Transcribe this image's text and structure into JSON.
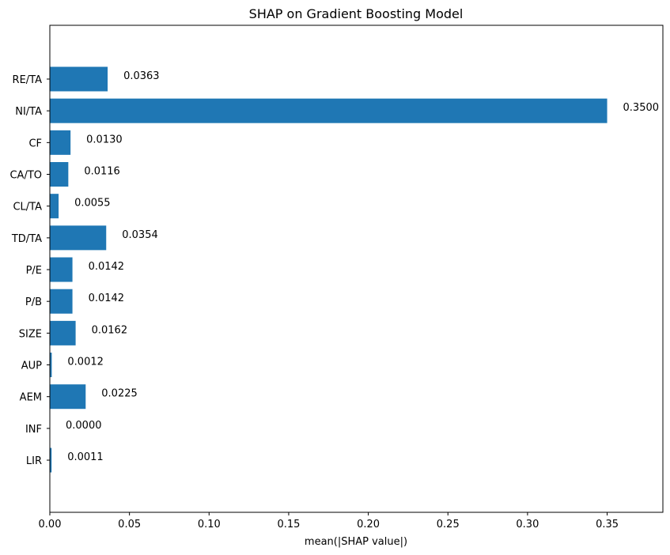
{
  "chart_data": {
    "type": "bar",
    "orientation": "horizontal",
    "title": "SHAP on Gradient Boosting Model",
    "xlabel": "mean(|SHAP value|)",
    "ylabel": "",
    "xlim": [
      0,
      0.385
    ],
    "xticks": [
      "0.00",
      "0.05",
      "0.10",
      "0.15",
      "0.20",
      "0.25",
      "0.30",
      "0.35"
    ],
    "categories": [
      "RE/TA",
      "NI/TA",
      "CF",
      "CA/TO",
      "CL/TA",
      "TD/TA",
      "P/E",
      "P/B",
      "SIZE",
      "AUP",
      "AEM",
      "INF",
      "LIR"
    ],
    "values": [
      0.0363,
      0.35,
      0.013,
      0.0116,
      0.0055,
      0.0354,
      0.0142,
      0.0142,
      0.0162,
      0.0012,
      0.0225,
      0.0,
      0.0011
    ],
    "value_labels": [
      "0.0363",
      "0.3500",
      "0.0130",
      "0.0116",
      "0.0055",
      "0.0354",
      "0.0142",
      "0.0142",
      "0.0162",
      "0.0012",
      "0.0225",
      "0.0000",
      "0.0011"
    ],
    "bar_color": "#1f77b4",
    "grid": false,
    "legend": "none"
  }
}
